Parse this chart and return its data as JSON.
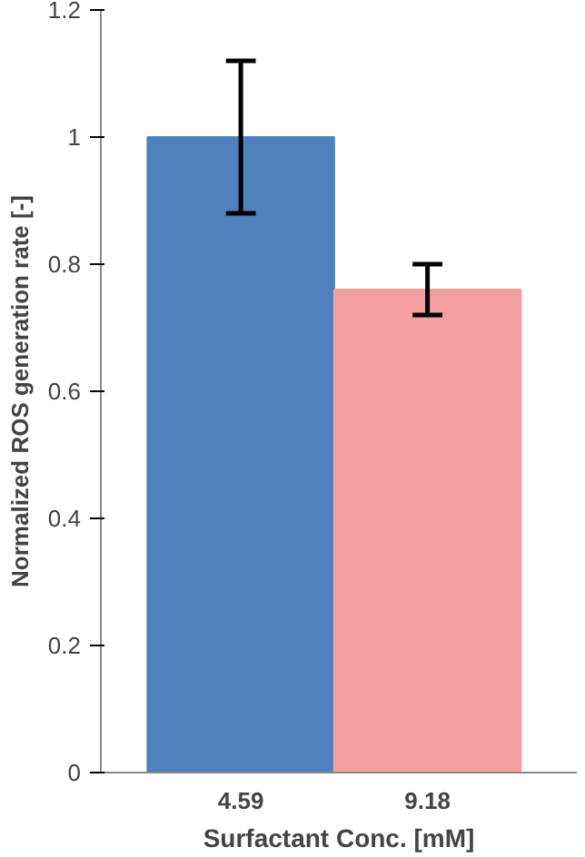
{
  "chart_data": {
    "type": "bar",
    "xlabel": "Surfactant Conc. [mM]",
    "ylabel": "Normalized ROS generation rate [-]",
    "categories": [
      "4.59",
      "9.18"
    ],
    "values": [
      1.0,
      0.76
    ],
    "colors": [
      "#4f81bd",
      "#f4a0a0"
    ],
    "errors": [
      [
        0.88,
        1.12
      ],
      [
        0.72,
        0.8
      ]
    ],
    "ylim": [
      0,
      1.2
    ],
    "yticks": [
      0,
      {
        "value": 0.2,
        "label": "0.2"
      },
      {
        "value": 0.4,
        "label": "0.4"
      },
      {
        "value": 0.6,
        "label": "0.6"
      },
      {
        "value": 0.8,
        "label": "0.8"
      },
      1,
      {
        "value": 1.2,
        "label": "1.2"
      }
    ],
    "grid": false
  }
}
